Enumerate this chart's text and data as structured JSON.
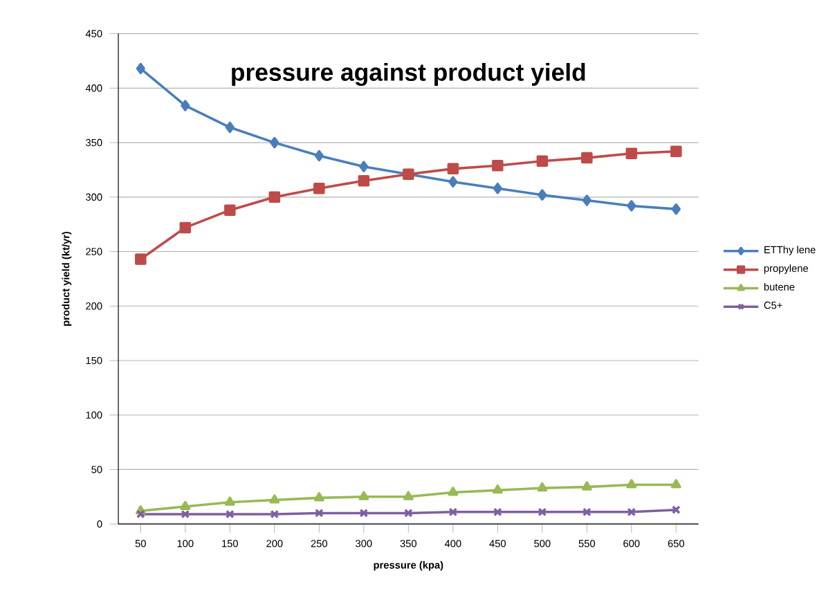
{
  "chart_data": {
    "type": "line",
    "title": "pressure against product yield",
    "xlabel": "pressure (kpa)",
    "ylabel": "product yield (kt/yr)",
    "categories": [
      "50",
      "100",
      "150",
      "200",
      "250",
      "300",
      "350",
      "400",
      "450",
      "500",
      "550",
      "600",
      "650"
    ],
    "series": [
      {
        "name": "ETThy lene",
        "color": "#4a7ebb",
        "marker": "diamond",
        "values": [
          418,
          384,
          364,
          350,
          338,
          328,
          321,
          314,
          308,
          302,
          297,
          292,
          289
        ]
      },
      {
        "name": "propylene",
        "color": "#be4b48",
        "marker": "square",
        "values": [
          243,
          272,
          288,
          300,
          308,
          315,
          321,
          326,
          329,
          333,
          336,
          340,
          342
        ]
      },
      {
        "name": "butene",
        "color": "#98b954",
        "marker": "triangle",
        "values": [
          12,
          16,
          20,
          22,
          24,
          25,
          25,
          29,
          31,
          33,
          34,
          36,
          36
        ]
      },
      {
        "name": "C5+",
        "color": "#7d60a0",
        "marker": "cross",
        "values": [
          9,
          9,
          9,
          9,
          10,
          10,
          10,
          11,
          11,
          11,
          11,
          11,
          13
        ]
      }
    ],
    "ylim": [
      0,
      450
    ],
    "yticks": [
      0,
      50,
      100,
      150,
      200,
      250,
      300,
      350,
      400,
      450
    ],
    "grid": "y",
    "legend": "right"
  }
}
